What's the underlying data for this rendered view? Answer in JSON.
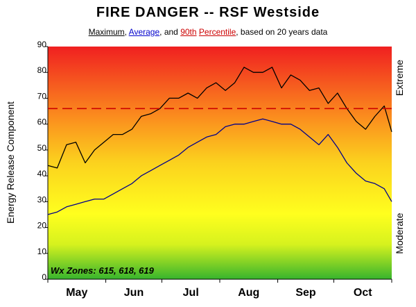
{
  "chart_data": {
    "type": "line",
    "title": "FIRE DANGER -- RSF Westside",
    "legend": {
      "max_label": "Maximum",
      "sep1": ", ",
      "avg_label": "Average",
      "sep2": ", and ",
      "p90_label": "90th",
      "p90_sep": " ",
      "p90_label2": "Percentile",
      "suffix": ", based on 20 years data"
    },
    "ylabel": "Energy Release Component",
    "right_label_top": "Extreme",
    "right_label_bottom": "Moderate",
    "annotation": "Wx Zones: 615, 618, 619",
    "ylim": [
      0,
      90
    ],
    "yticks": [
      0,
      10,
      20,
      30,
      40,
      50,
      60,
      70,
      80,
      90
    ],
    "xlim": [
      "May 1",
      "Oct 31"
    ],
    "month_ticks": [
      "May",
      "Jun",
      "Jul",
      "Aug",
      "Sep",
      "Oct"
    ],
    "grid": false,
    "background": "vertical gradient green (bottom) to yellow to orange to red (top)",
    "colors": {
      "maximum": "#000000",
      "average": "#00008b",
      "percentile_90": "#cc0000"
    },
    "series": [
      {
        "name": "Maximum",
        "x_day_of_season": [
          0,
          5,
          10,
          15,
          20,
          25,
          30,
          35,
          40,
          45,
          50,
          55,
          60,
          65,
          70,
          75,
          80,
          85,
          90,
          95,
          100,
          105,
          110,
          115,
          120,
          125,
          130,
          135,
          140,
          145,
          150,
          155,
          160,
          165,
          170,
          175,
          180,
          184
        ],
        "values": [
          44,
          43,
          52,
          53,
          45,
          50,
          53,
          56,
          56,
          58,
          63,
          64,
          66,
          70,
          70,
          72,
          70,
          74,
          76,
          73,
          76,
          82,
          80,
          80,
          82,
          74,
          79,
          77,
          73,
          74,
          68,
          72,
          66,
          61,
          58,
          63,
          67,
          57
        ]
      },
      {
        "name": "Average",
        "x_day_of_season": [
          0,
          5,
          10,
          15,
          20,
          25,
          30,
          35,
          40,
          45,
          50,
          55,
          60,
          65,
          70,
          75,
          80,
          85,
          90,
          95,
          100,
          105,
          110,
          115,
          120,
          125,
          130,
          135,
          140,
          145,
          150,
          155,
          160,
          165,
          170,
          175,
          180,
          184
        ],
        "values": [
          25,
          26,
          28,
          29,
          30,
          31,
          31,
          33,
          35,
          37,
          40,
          42,
          44,
          46,
          48,
          51,
          53,
          55,
          56,
          59,
          60,
          60,
          61,
          62,
          61,
          60,
          60,
          58,
          55,
          52,
          56,
          51,
          45,
          41,
          38,
          37,
          35,
          30
        ]
      },
      {
        "name": "90th Percentile",
        "x_day_of_season": [
          0,
          184
        ],
        "values": [
          66,
          66
        ]
      }
    ]
  }
}
